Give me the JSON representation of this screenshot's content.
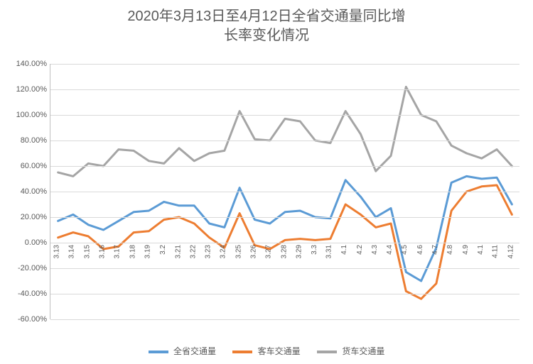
{
  "chart": {
    "type": "line",
    "title_line1": "2020年3月13日至4月12日全省交通量同比增",
    "title_line2": "长率变化情况",
    "title_fontsize": 20,
    "title_color": "#595959",
    "background_color": "#ffffff",
    "grid_color": "#d9d9d9",
    "axis_color": "#bfbfbf",
    "axis_label_color": "#595959",
    "axis_label_fontsize": 11,
    "xlim_count": 31,
    "ylim": [
      -60,
      140
    ],
    "ytick_step": 20,
    "ytick_format_suffix": ".00%",
    "yticks": [
      -60,
      -40,
      -20,
      0,
      20,
      40,
      60,
      80,
      100,
      120,
      140
    ],
    "x_labels": [
      "3.13",
      "3.14",
      "3.15",
      "3.16",
      "3.17",
      "3.18",
      "3.19",
      "3.2",
      "3.21",
      "3.22",
      "3.23",
      "3.24",
      "3.25",
      "3.26",
      "3.27",
      "3.28",
      "3.29",
      "3.3",
      "3.31",
      "4.1",
      "4.2",
      "4.3",
      "4.4",
      "4.5",
      "4.6",
      "4.7",
      "4.8",
      "4.9",
      "4.1",
      "4.11",
      "4.12"
    ],
    "line_width": 3,
    "series": [
      {
        "name": "全省交通量",
        "color": "#5b9bd5",
        "values": [
          17,
          22,
          14,
          10,
          17,
          24,
          25,
          32,
          29,
          29,
          15,
          12,
          43,
          18,
          15,
          24,
          25,
          20,
          19,
          49,
          36,
          20,
          27,
          -23,
          -30,
          -4,
          47,
          52,
          50,
          51,
          30
        ]
      },
      {
        "name": "客车交通量",
        "color": "#ed7d31",
        "values": [
          4,
          8,
          5,
          -5,
          -3,
          8,
          9,
          18,
          20,
          15,
          4,
          -4,
          23,
          -2,
          -5,
          2,
          3,
          2,
          3,
          30,
          22,
          12,
          15,
          -38,
          -44,
          -32,
          25,
          40,
          44,
          45,
          22
        ]
      },
      {
        "name": "货车交通量",
        "color": "#a5a5a5",
        "values": [
          55,
          52,
          62,
          60,
          73,
          72,
          64,
          62,
          74,
          64,
          70,
          72,
          103,
          81,
          80,
          97,
          95,
          80,
          78,
          103,
          85,
          56,
          68,
          122,
          100,
          95,
          76,
          70,
          66,
          73,
          60
        ]
      }
    ],
    "legend": {
      "items": [
        "全省交通量",
        "客车交通量",
        "货车交通量"
      ],
      "colors": [
        "#5b9bd5",
        "#ed7d31",
        "#a5a5a5"
      ],
      "fontsize": 12,
      "text_color": "#595959"
    }
  }
}
